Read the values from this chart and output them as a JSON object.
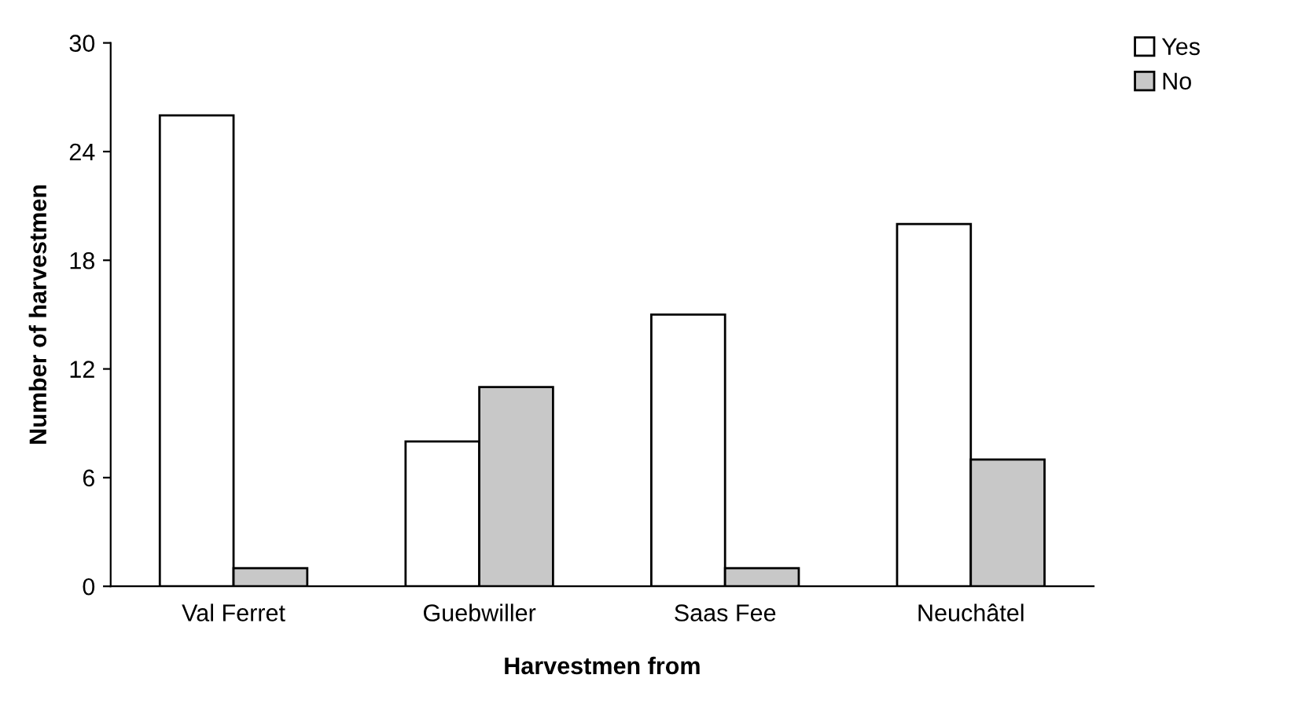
{
  "chart_data": {
    "type": "bar",
    "xlabel": "Harvestmen from",
    "ylabel": "Number of harvestmen",
    "categories": [
      "Val Ferret",
      "Guebwiller",
      "Saas Fee",
      "Neuchâtel"
    ],
    "series": [
      {
        "name": "Yes",
        "color": "#ffffff",
        "values": [
          26,
          8,
          15,
          20
        ]
      },
      {
        "name": "No",
        "color": "#c8c8c8",
        "values": [
          1,
          11,
          1,
          7
        ]
      }
    ],
    "ylim": [
      0,
      30
    ],
    "yticks": [
      0,
      6,
      12,
      18,
      24,
      30
    ],
    "grid": false,
    "legend": "top right"
  }
}
